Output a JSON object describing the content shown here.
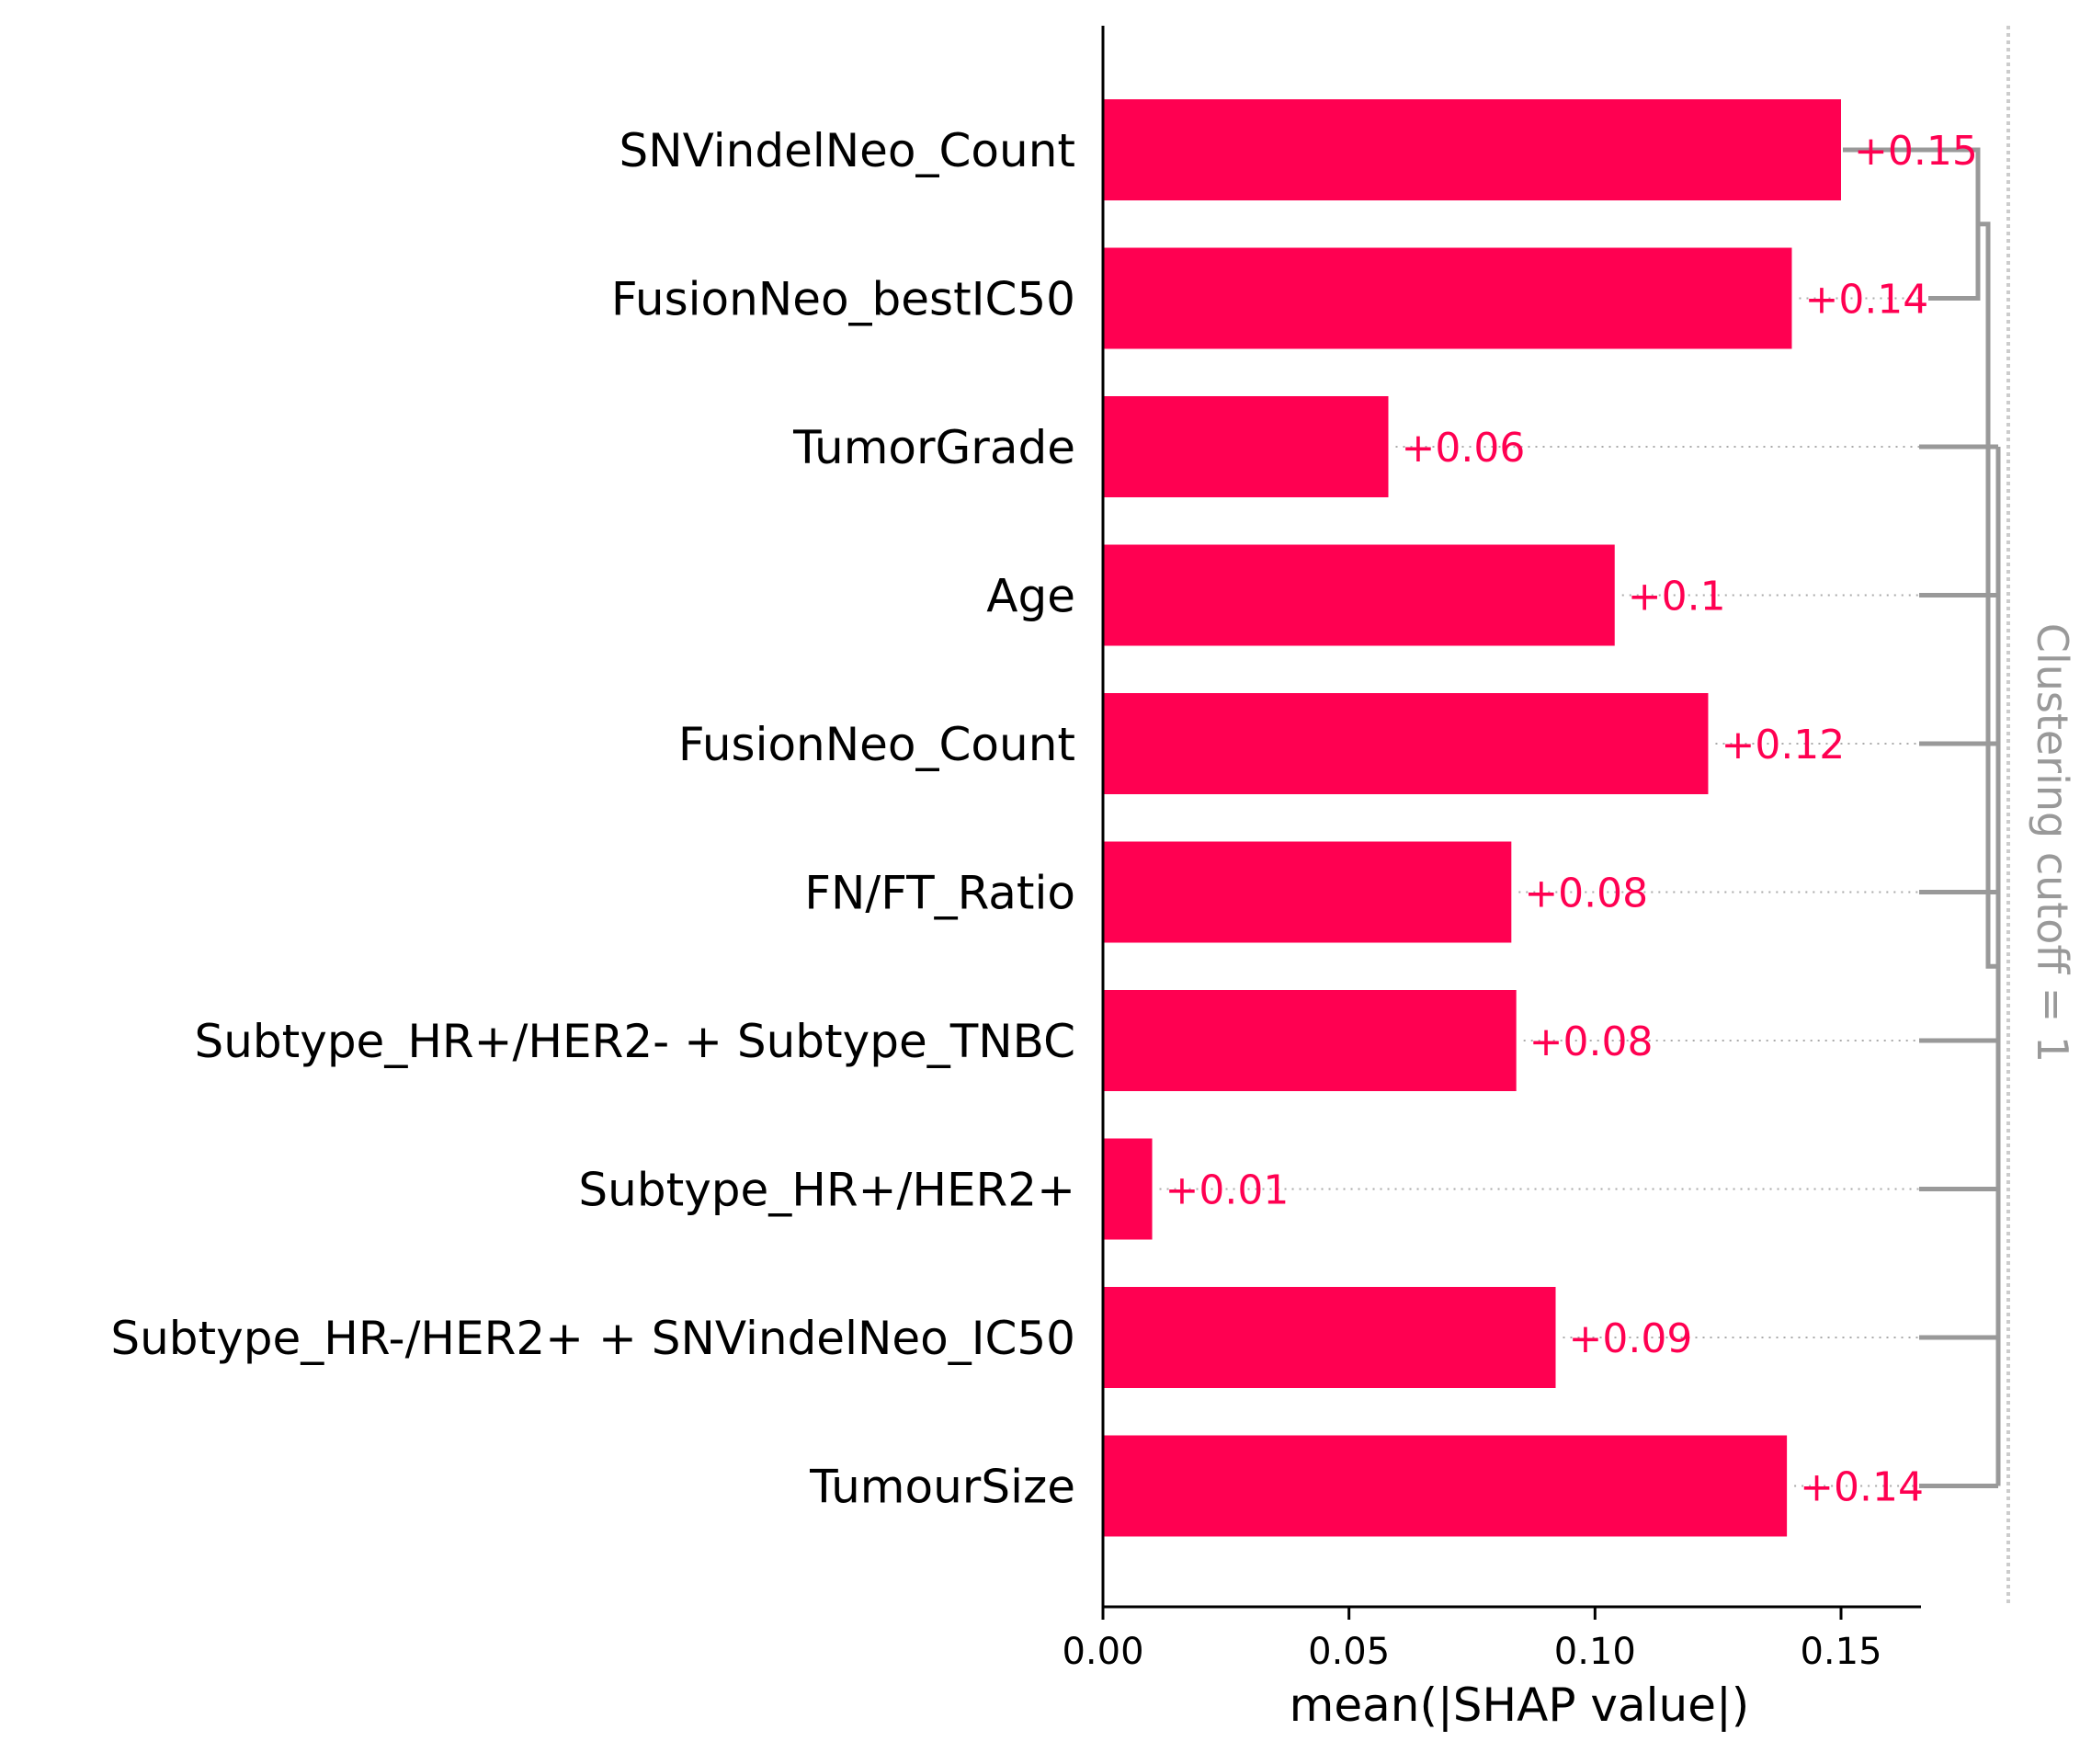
{
  "chart_data": {
    "type": "bar",
    "orientation": "horizontal",
    "categories": [
      "SNVindelNeo_Count",
      "FusionNeo_bestIC50",
      "TumorGrade",
      "Age",
      "FusionNeo_Count",
      "FN/FT_Ratio",
      "Subtype_HR+/HER2- + Subtype_TNBC",
      "Subtype_HR+/HER2+",
      "Subtype_HR-/HER2+ + SNVindelNeo_IC50",
      "TumourSize"
    ],
    "values": [
      0.15,
      0.14,
      0.058,
      0.104,
      0.123,
      0.083,
      0.084,
      0.01,
      0.092,
      0.139
    ],
    "value_labels": [
      "+0.15",
      "+0.14",
      "+0.06",
      "+0.1",
      "+0.12",
      "+0.08",
      "+0.08",
      "+0.01",
      "+0.09",
      "+0.14"
    ],
    "xlabel": "mean(|SHAP value|)",
    "ylabel": "",
    "xlim": [
      0,
      0.166
    ],
    "xticks": [
      0,
      0.05,
      0.1,
      0.15
    ],
    "xtick_labels": [
      "0.00",
      "0.05",
      "0.10",
      "0.15"
    ],
    "grid": false,
    "clustering_label": "Clustering cutoff = 1",
    "dendrogram": "SNVindelNeo_Count and FusionNeo_bestIC50 merge first; that pair then joins the cluster of all remaining features",
    "colors": {
      "bar": "#ff0051",
      "value_label": "#ff0051",
      "dendrogram": "#999999",
      "cutoff_line": "#cccccc",
      "axis": "#000000"
    }
  }
}
